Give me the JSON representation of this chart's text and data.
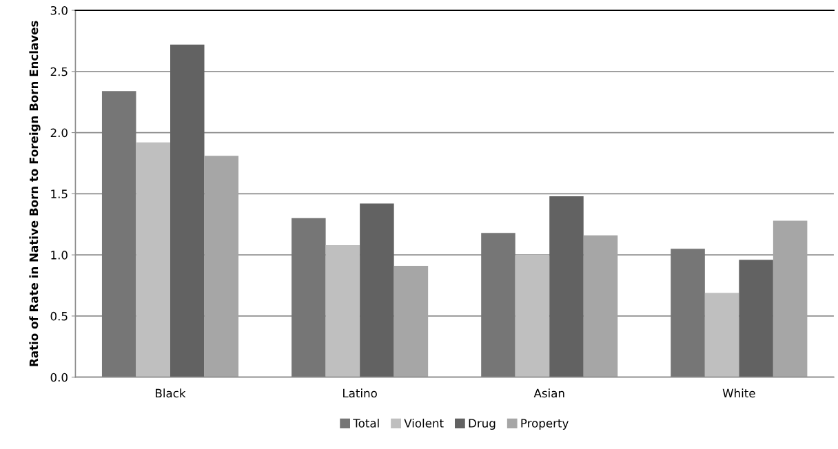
{
  "chart_data": {
    "type": "bar",
    "ylabel": "Ratio of Rate in Native Born to Foreign Born Enclaves",
    "categories": [
      "Black",
      "Latino",
      "Asian",
      "White"
    ],
    "series": [
      {
        "name": "Total",
        "color": "#767676",
        "values": [
          2.34,
          1.3,
          1.18,
          1.05
        ]
      },
      {
        "name": "Violent",
        "color": "#bfbfbf",
        "values": [
          1.92,
          1.08,
          1.0,
          0.69
        ]
      },
      {
        "name": "Drug",
        "color": "#626262",
        "values": [
          2.72,
          1.42,
          1.48,
          0.96
        ]
      },
      {
        "name": "Property",
        "color": "#a6a6a6",
        "values": [
          1.81,
          0.91,
          1.16,
          1.28
        ]
      }
    ],
    "ylim": [
      0,
      3.0
    ],
    "yticks": [
      {
        "value": 0,
        "label": "0.0"
      },
      {
        "value": 0.5,
        "label": "0.5"
      },
      {
        "value": 1.0,
        "label": "1.0"
      },
      {
        "value": 1.5,
        "label": "1.5"
      },
      {
        "value": 2.0,
        "label": "2.0"
      },
      {
        "value": 2.5,
        "label": "2.5"
      },
      {
        "value": 3.0,
        "label": "3.0"
      }
    ],
    "grid": "y",
    "legend": "bottom"
  }
}
